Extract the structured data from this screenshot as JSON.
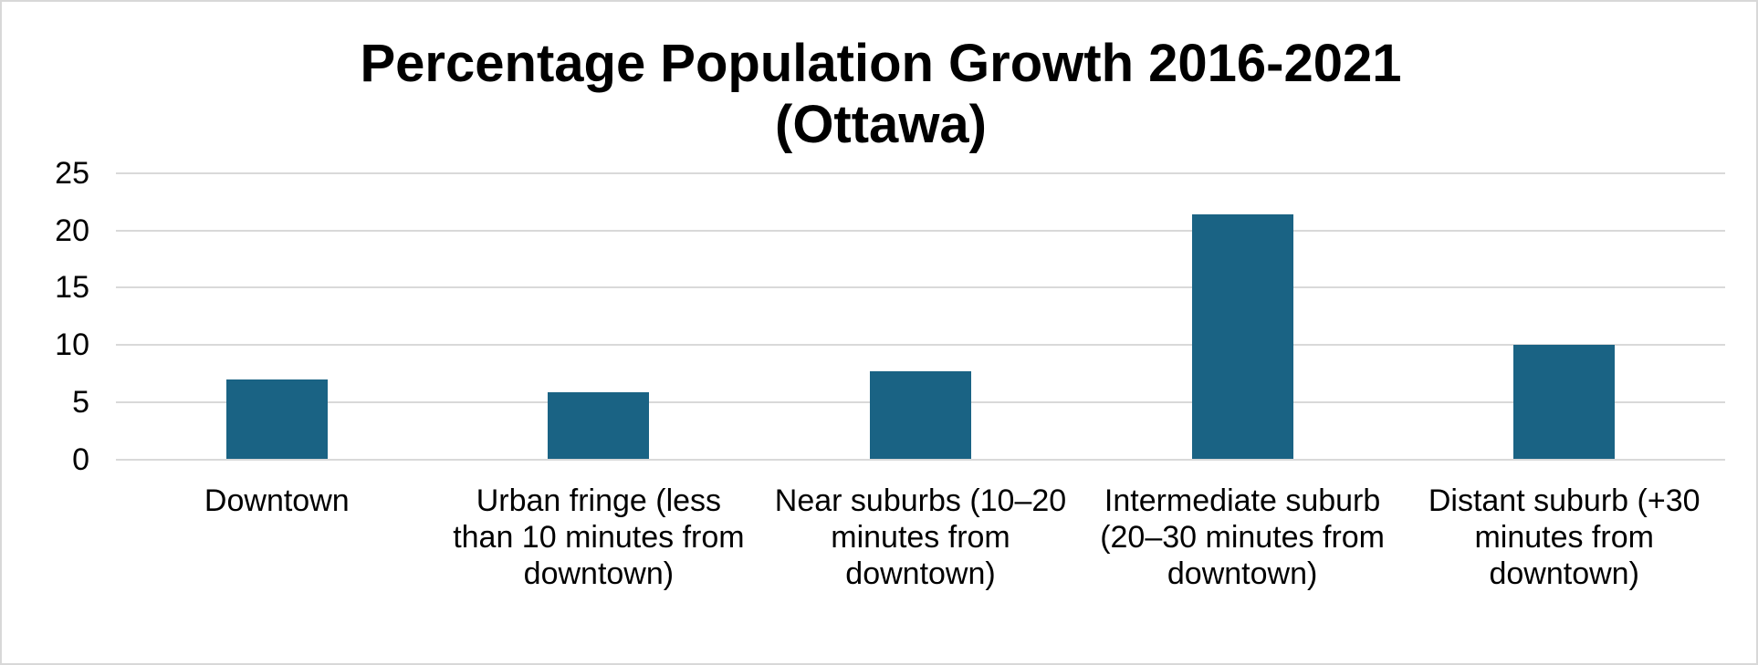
{
  "window": {
    "background_color": "#ffffff",
    "frame_border_color": "#d8d8d8"
  },
  "chart_data": {
    "type": "bar",
    "title": "Percentage Population Growth 2016-2021 (Ottawa)",
    "title_lines": [
      "Percentage Population Growth 2016-2021",
      "(Ottawa)"
    ],
    "categories": [
      "Downtown",
      "Urban fringe (less than 10 minutes from downtown)",
      "Near suburbs (10–20 minutes from downtown)",
      "Intermediate suburb (20–30 minutes from downtown)",
      "Distant suburb (+30 minutes from downtown)"
    ],
    "values": [
      7.0,
      5.9,
      7.7,
      21.4,
      10.0
    ],
    "unit": "percent",
    "xlabel": "",
    "ylabel": "",
    "ylim": [
      0,
      25
    ],
    "yticks": [
      0,
      5,
      10,
      15,
      20,
      25
    ],
    "grid": true,
    "legend": false,
    "bar_color": "#1A6384",
    "gridline_color": "#D9D9D9",
    "text_color": "#000000"
  }
}
